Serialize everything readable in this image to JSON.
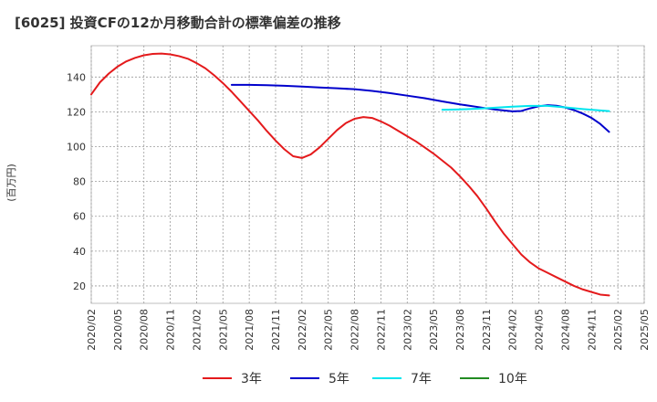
{
  "chart_data": {
    "type": "line",
    "title": "[6025]  投資CFの12か月移動合計の標準偏差の推移",
    "ylabel": "(百万円)",
    "xlabel": "",
    "ylim": [
      10,
      158
    ],
    "yticks": [
      20,
      40,
      60,
      80,
      100,
      120,
      140
    ],
    "xlim": [
      "2020-02",
      "2025-05"
    ],
    "xticks": [
      "2020/02",
      "2020/05",
      "2020/08",
      "2020/11",
      "2021/02",
      "2021/05",
      "2021/08",
      "2021/11",
      "2022/02",
      "2022/05",
      "2022/08",
      "2022/11",
      "2023/02",
      "2023/05",
      "2023/08",
      "2023/11",
      "2024/02",
      "2024/05",
      "2024/08",
      "2024/11",
      "2025/02",
      "2025/05"
    ],
    "grid": true,
    "legend_position": "bottom",
    "series": [
      {
        "name": "3年",
        "color": "#e41a1c",
        "points": [
          [
            "2020-02",
            130
          ],
          [
            "2020-03",
            137
          ],
          [
            "2020-04",
            142
          ],
          [
            "2020-05",
            146
          ],
          [
            "2020-06",
            149
          ],
          [
            "2020-07",
            151
          ],
          [
            "2020-08",
            152.5
          ],
          [
            "2020-09",
            153.3
          ],
          [
            "2020-10",
            153.5
          ],
          [
            "2020-11",
            153
          ],
          [
            "2020-12",
            152
          ],
          [
            "2021-01",
            150.5
          ],
          [
            "2021-02",
            148
          ],
          [
            "2021-03",
            145
          ],
          [
            "2021-04",
            141
          ],
          [
            "2021-05",
            136.5
          ],
          [
            "2021-06",
            131.5
          ],
          [
            "2021-07",
            126
          ],
          [
            "2021-08",
            120.5
          ],
          [
            "2021-09",
            115
          ],
          [
            "2021-10",
            109
          ],
          [
            "2021-11",
            103.5
          ],
          [
            "2021-12",
            98.5
          ],
          [
            "2022-01",
            94.5
          ],
          [
            "2022-02",
            93.5
          ],
          [
            "2022-03",
            95.5
          ],
          [
            "2022-04",
            99.5
          ],
          [
            "2022-05",
            104.5
          ],
          [
            "2022-06",
            109.5
          ],
          [
            "2022-07",
            113.5
          ],
          [
            "2022-08",
            116
          ],
          [
            "2022-09",
            117
          ],
          [
            "2022-10",
            116.5
          ],
          [
            "2022-11",
            114.5
          ],
          [
            "2022-12",
            112
          ],
          [
            "2023-01",
            109
          ],
          [
            "2023-02",
            106
          ],
          [
            "2023-03",
            103
          ],
          [
            "2023-04",
            99.5
          ],
          [
            "2023-05",
            96
          ],
          [
            "2023-06",
            92
          ],
          [
            "2023-07",
            88
          ],
          [
            "2023-08",
            83
          ],
          [
            "2023-09",
            77.5
          ],
          [
            "2023-10",
            71.5
          ],
          [
            "2023-11",
            64.5
          ],
          [
            "2023-12",
            57
          ],
          [
            "2024-01",
            50
          ],
          [
            "2024-02",
            44
          ],
          [
            "2024-03",
            38
          ],
          [
            "2024-04",
            33.5
          ],
          [
            "2024-05",
            30
          ],
          [
            "2024-06",
            27.5
          ],
          [
            "2024-07",
            25
          ],
          [
            "2024-08",
            22.5
          ],
          [
            "2024-09",
            20
          ],
          [
            "2024-10",
            18
          ],
          [
            "2024-11",
            16.5
          ],
          [
            "2024-12",
            15
          ],
          [
            "2025-01",
            14.5
          ]
        ]
      },
      {
        "name": "5年",
        "color": "#0000cc",
        "points": [
          [
            "2021-06",
            135.5
          ],
          [
            "2021-08",
            135.5
          ],
          [
            "2021-10",
            135.3
          ],
          [
            "2021-12",
            135
          ],
          [
            "2022-02",
            134.5
          ],
          [
            "2022-04",
            134
          ],
          [
            "2022-06",
            133.5
          ],
          [
            "2022-08",
            133
          ],
          [
            "2022-10",
            132
          ],
          [
            "2022-12",
            130.8
          ],
          [
            "2023-02",
            129.3
          ],
          [
            "2023-04",
            127.8
          ],
          [
            "2023-06",
            126
          ],
          [
            "2023-08",
            124.3
          ],
          [
            "2023-10",
            122.8
          ],
          [
            "2023-12",
            121.3
          ],
          [
            "2024-02",
            120.3
          ],
          [
            "2024-03",
            120.5
          ],
          [
            "2024-04",
            122
          ],
          [
            "2024-05",
            123.2
          ],
          [
            "2024-06",
            123.8
          ],
          [
            "2024-07",
            123.5
          ],
          [
            "2024-08",
            122.5
          ],
          [
            "2024-09",
            121
          ],
          [
            "2024-10",
            119
          ],
          [
            "2024-11",
            116.5
          ],
          [
            "2024-12",
            113
          ],
          [
            "2025-01",
            108.5
          ]
        ]
      },
      {
        "name": "7年",
        "color": "#00e5ee",
        "points": [
          [
            "2023-06",
            121.2
          ],
          [
            "2023-08",
            121.4
          ],
          [
            "2023-10",
            121.8
          ],
          [
            "2023-12",
            122.4
          ],
          [
            "2024-02",
            123
          ],
          [
            "2024-04",
            123.4
          ],
          [
            "2024-06",
            123.4
          ],
          [
            "2024-08",
            122.6
          ],
          [
            "2024-10",
            121.6
          ],
          [
            "2024-12",
            120.8
          ],
          [
            "2025-01",
            120.4
          ]
        ]
      },
      {
        "name": "10年",
        "color": "#228b22",
        "points": []
      }
    ]
  }
}
